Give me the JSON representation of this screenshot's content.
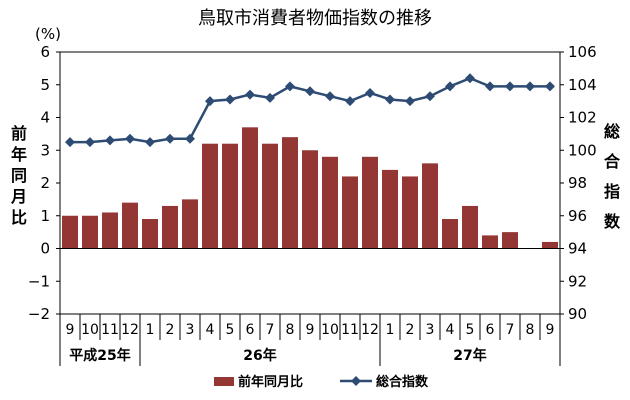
{
  "chart_data": {
    "type": "bar",
    "title": "鳥取市消費者物価指数の推移",
    "left_axis": {
      "unit_label": "(%)",
      "label": "前年同月比",
      "ylim": [
        -2,
        6
      ],
      "ticks": [
        "6",
        "5",
        "4",
        "3",
        "2",
        "1",
        "0",
        "−1",
        "−2"
      ]
    },
    "right_axis": {
      "label": "総合指数",
      "ylim": [
        90,
        106
      ],
      "ticks": [
        "106",
        "104",
        "102",
        "100",
        "98",
        "96",
        "94",
        "92",
        "90"
      ]
    },
    "categories": [
      "9",
      "10",
      "11",
      "12",
      "1",
      "2",
      "3",
      "4",
      "5",
      "6",
      "7",
      "8",
      "9",
      "10",
      "11",
      "12",
      "1",
      "2",
      "3",
      "4",
      "5",
      "6",
      "7",
      "8",
      "9"
    ],
    "year_groups": [
      {
        "label": "平成25年",
        "span": 4
      },
      {
        "label": "26年",
        "span": 12
      },
      {
        "label": "27年",
        "span": 9
      }
    ],
    "series": [
      {
        "name": "前年同月比",
        "type": "bar",
        "axis": "left",
        "color": "#943634",
        "values": [
          1.0,
          1.0,
          1.1,
          1.4,
          0.9,
          1.3,
          1.5,
          3.2,
          3.2,
          3.7,
          3.2,
          3.4,
          3.0,
          2.8,
          2.2,
          2.8,
          2.4,
          2.2,
          2.6,
          0.9,
          1.3,
          0.4,
          0.5,
          0.0,
          0.2
        ]
      },
      {
        "name": "総合指数",
        "type": "line",
        "axis": "right",
        "color": "#2E4C73",
        "values": [
          100.5,
          100.5,
          100.6,
          100.7,
          100.5,
          100.7,
          100.7,
          103.0,
          103.1,
          103.4,
          103.2,
          103.9,
          103.6,
          103.3,
          103.0,
          103.5,
          103.1,
          103.0,
          103.3,
          103.9,
          104.4,
          103.9,
          103.9,
          103.9,
          103.9
        ]
      }
    ],
    "legend": {
      "position": "bottom"
    },
    "grid": false
  }
}
